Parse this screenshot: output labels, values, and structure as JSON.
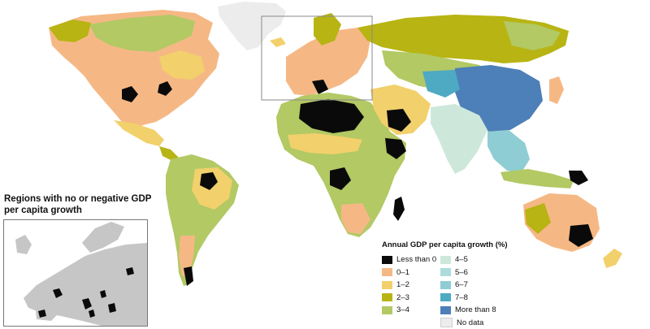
{
  "colors": {
    "negative": "#0a0a0a",
    "g0_1": "#f5b885",
    "g1_2": "#f2d06b",
    "g2_3": "#b8b413",
    "g3_4": "#b2c964",
    "g4_5": "#cde8db",
    "g5_6": "#acdcdc",
    "g6_7": "#8ecdd3",
    "g7_8": "#4ea9c3",
    "g8plus": "#4d7fb8",
    "nodata": "#ececec",
    "inset_land": "#c6c6c6",
    "frame": "#8a8a8a"
  },
  "inset": {
    "title": "Regions with no or negative GDP per capita growth"
  },
  "legend": {
    "title": "Annual GDP per capita growth (%)",
    "items": [
      {
        "label": "Less than 0",
        "color": "#0a0a0a"
      },
      {
        "label": "0–1",
        "color": "#f5b885"
      },
      {
        "label": "1–2",
        "color": "#f2d06b"
      },
      {
        "label": "2–3",
        "color": "#b8b413"
      },
      {
        "label": "3–4",
        "color": "#b2c964"
      },
      {
        "label": "4–5",
        "color": "#cde8db"
      },
      {
        "label": "5–6",
        "color": "#acdcdc"
      },
      {
        "label": "6–7",
        "color": "#8ecdd3"
      },
      {
        "label": "7–8",
        "color": "#4ea9c3"
      },
      {
        "label": "More than 8",
        "color": "#4d7fb8"
      },
      {
        "label": "No data",
        "color": "#ececec"
      }
    ]
  }
}
